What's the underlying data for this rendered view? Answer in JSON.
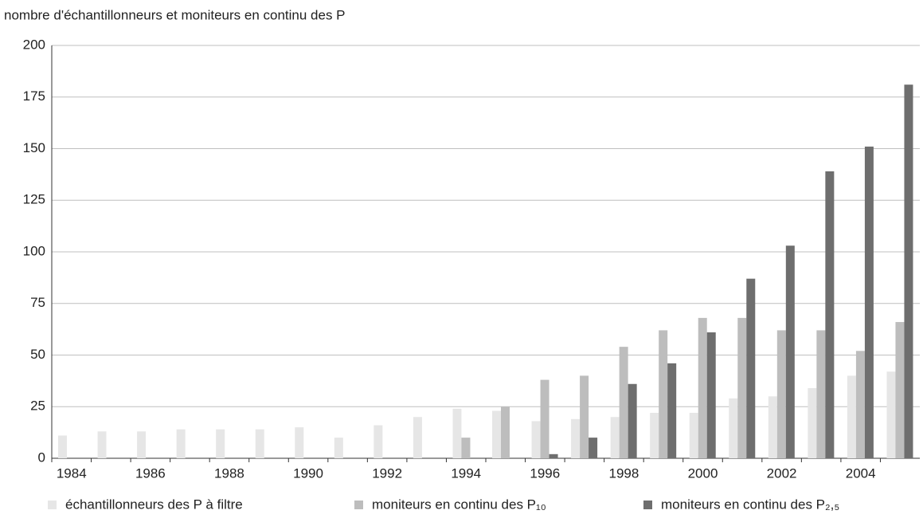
{
  "chart_data": {
    "type": "bar",
    "title": "nombre d'échantillonneurs et moniteurs en continu des P",
    "categories": [
      "1984",
      null,
      "1986",
      null,
      "1988",
      null,
      "1990",
      null,
      "1992",
      null,
      "1994",
      null,
      "1996",
      null,
      "1998",
      null,
      "2000",
      null,
      "2002",
      null,
      "2004",
      null
    ],
    "series": [
      {
        "name": "échantillonneurs des P à filtre",
        "color": "#e6e6e6",
        "values": [
          11,
          13,
          13,
          14,
          14,
          14,
          15,
          10,
          16,
          20,
          24,
          23,
          18,
          19,
          20,
          22,
          22,
          29,
          30,
          34,
          40,
          42
        ]
      },
      {
        "name": "moniteurs en continu des P₁₀",
        "color": "#bdbdbd",
        "values": [
          0,
          0,
          0,
          0,
          0,
          0,
          0,
          0,
          0,
          0,
          10,
          25,
          38,
          40,
          54,
          62,
          68,
          68,
          62,
          62,
          52,
          66
        ]
      },
      {
        "name": "moniteurs en continu des P₂,₅",
        "color": "#6e6e6e",
        "values": [
          0,
          0,
          0,
          0,
          0,
          0,
          0,
          0,
          0,
          0,
          0,
          0,
          2,
          10,
          36,
          46,
          61,
          87,
          103,
          139,
          151,
          181
        ]
      }
    ],
    "ylim": [
      0,
      200
    ],
    "yticks": [
      0,
      25,
      50,
      75,
      100,
      125,
      150,
      175,
      200
    ],
    "grid": true
  }
}
